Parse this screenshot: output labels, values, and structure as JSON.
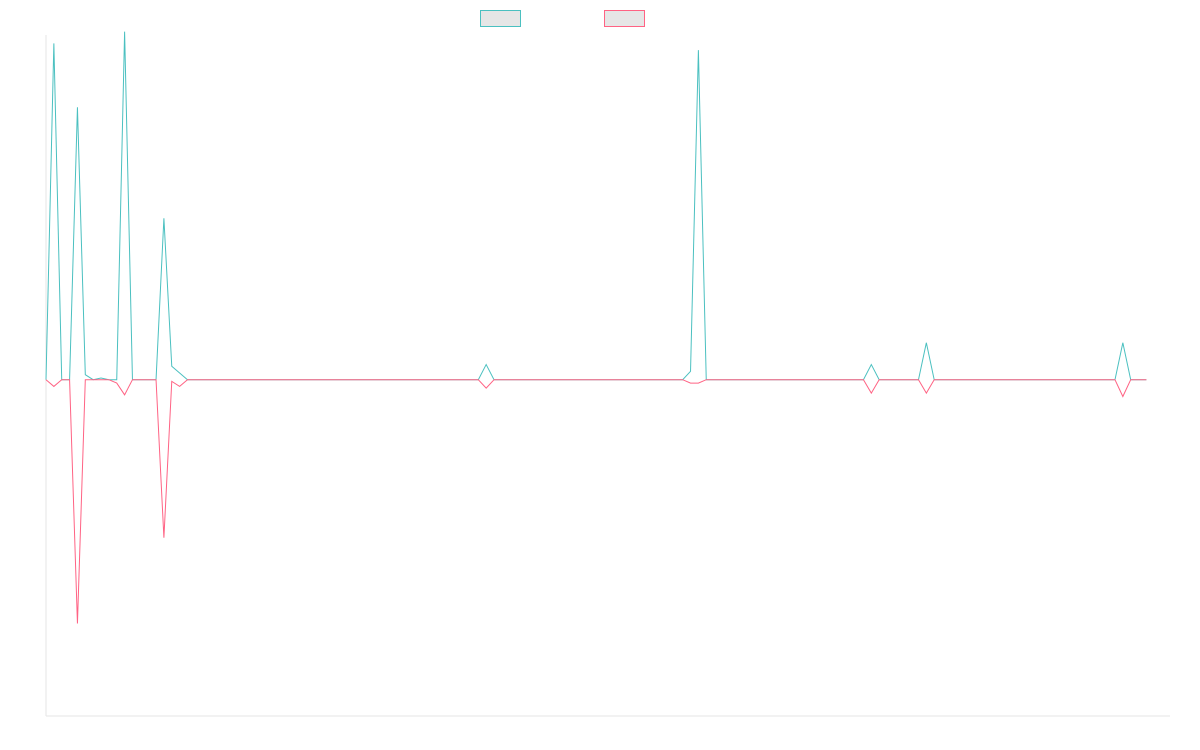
{
  "chart_data": {
    "type": "line",
    "title": "",
    "xlabel": "",
    "ylabel": "",
    "grid": false,
    "legend_position": "top",
    "xlim": [
      0,
      143
    ],
    "ylim": [
      -200,
      205
    ],
    "series": [
      {
        "name": "",
        "color": "#4bc0c0",
        "fill": "#e6e6e6",
        "values": [
          0,
          200,
          0,
          0,
          162,
          3,
          0,
          1,
          0,
          0,
          207,
          0,
          0,
          0,
          0,
          96,
          8,
          4,
          0,
          0,
          0,
          0,
          0,
          0,
          0,
          0,
          0,
          0,
          0,
          0,
          0,
          0,
          0,
          0,
          0,
          0,
          0,
          0,
          0,
          0,
          0,
          0,
          0,
          0,
          0,
          0,
          0,
          0,
          0,
          0,
          0,
          0,
          0,
          0,
          0,
          0,
          9,
          0,
          0,
          0,
          0,
          0,
          0,
          0,
          0,
          0,
          0,
          0,
          0,
          0,
          0,
          0,
          0,
          0,
          0,
          0,
          0,
          0,
          0,
          0,
          0,
          0,
          5,
          196,
          0,
          0,
          0,
          0,
          0,
          0,
          0,
          0,
          0,
          0,
          0,
          0,
          0,
          0,
          0,
          0,
          0,
          0,
          0,
          0,
          0,
          9,
          0,
          0,
          0,
          0,
          0,
          0,
          22,
          0,
          0,
          0,
          0,
          0,
          0,
          0,
          0,
          0,
          0,
          0,
          0,
          0,
          0,
          0,
          0,
          0,
          0,
          0,
          0,
          0,
          0,
          0,
          0,
          22,
          0,
          0,
          0
        ]
      },
      {
        "name": "",
        "color": "#ff6384",
        "fill": "#e6e6e6",
        "values": [
          0,
          -4,
          0,
          0,
          -145,
          0,
          0,
          0,
          0,
          -2,
          -9,
          0,
          0,
          0,
          0,
          -94,
          -1,
          -4,
          0,
          0,
          0,
          0,
          0,
          0,
          0,
          0,
          0,
          0,
          0,
          0,
          0,
          0,
          0,
          0,
          0,
          0,
          0,
          0,
          0,
          0,
          0,
          0,
          0,
          0,
          0,
          0,
          0,
          0,
          0,
          0,
          0,
          0,
          0,
          0,
          0,
          0,
          -5,
          0,
          0,
          0,
          0,
          0,
          0,
          0,
          0,
          0,
          0,
          0,
          0,
          0,
          0,
          0,
          0,
          0,
          0,
          0,
          0,
          0,
          0,
          0,
          0,
          0,
          -2,
          -2,
          0,
          0,
          0,
          0,
          0,
          0,
          0,
          0,
          0,
          0,
          0,
          0,
          0,
          0,
          0,
          0,
          0,
          0,
          0,
          0,
          0,
          -8,
          0,
          0,
          0,
          0,
          0,
          0,
          -8,
          0,
          0,
          0,
          0,
          0,
          0,
          0,
          0,
          0,
          0,
          0,
          0,
          0,
          0,
          0,
          0,
          0,
          0,
          0,
          0,
          0,
          0,
          0,
          0,
          -10,
          0,
          0,
          0
        ]
      }
    ]
  }
}
